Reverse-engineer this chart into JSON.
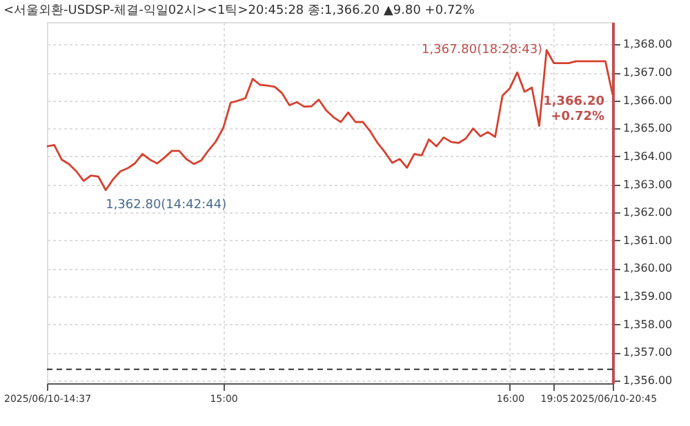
{
  "chart_data": {
    "type": "line",
    "title": "<서울외환-USDSP-체결-익일02시><1틱>20:45:28 종:1,366.20 ▲9.80 +0.72%",
    "categories": [
      "2025/06/10-14:37",
      null,
      null,
      null,
      null,
      null,
      null,
      null,
      null,
      null,
      null,
      null,
      null,
      null,
      null,
      null,
      null,
      null,
      null,
      null,
      null,
      null,
      null,
      null,
      "15:00",
      null,
      null,
      null,
      null,
      null,
      null,
      null,
      null,
      null,
      null,
      null,
      null,
      null,
      null,
      null,
      null,
      null,
      null,
      null,
      null,
      null,
      null,
      null,
      null,
      null,
      null,
      null,
      null,
      null,
      null,
      null,
      null,
      null,
      null,
      null,
      null,
      null,
      null,
      "16:00",
      null,
      null,
      null,
      null,
      null,
      "19:05",
      null,
      null,
      null,
      null,
      null,
      null,
      null,
      "2025/06/10-20:45"
    ],
    "series": [
      {
        "color": "#d7402f",
        "values": [
          1364.36,
          1364.41,
          1363.89,
          1363.73,
          1363.47,
          1363.13,
          1363.32,
          1363.28,
          1362.8,
          1363.18,
          1363.47,
          1363.58,
          1363.76,
          1364.09,
          1363.89,
          1363.75,
          1363.96,
          1364.2,
          1364.2,
          1363.9,
          1363.73,
          1363.86,
          1364.22,
          1364.54,
          1365.02,
          1365.92,
          1365.99,
          1366.08,
          1366.77,
          1366.56,
          1366.53,
          1366.49,
          1366.26,
          1365.83,
          1365.94,
          1365.78,
          1365.79,
          1366.03,
          1365.65,
          1365.4,
          1365.23,
          1365.57,
          1365.23,
          1365.23,
          1364.9,
          1364.48,
          1364.15,
          1363.77,
          1363.91,
          1363.6,
          1364.09,
          1364.04,
          1364.61,
          1364.36,
          1364.68,
          1364.52,
          1364.48,
          1364.64,
          1365.0,
          1364.72,
          1364.87,
          1364.7,
          1366.17,
          1366.44,
          1367.0,
          1366.31,
          1366.46,
          1365.09,
          1367.8,
          1367.33,
          1367.33,
          1367.33,
          1367.4,
          1367.4,
          1367.4,
          1367.4,
          1367.4,
          1366.2
        ]
      }
    ],
    "ylim": [
      1355.9,
      1368.8
    ],
    "yticks": [
      {
        "value": 1356,
        "label": "1,356.00"
      },
      {
        "value": 1357,
        "label": "1,357.00"
      },
      {
        "value": 1358,
        "label": "1,358.00"
      },
      {
        "value": 1359,
        "label": "1,359.00"
      },
      {
        "value": 1360,
        "label": "1,360.00"
      },
      {
        "value": 1361,
        "label": "1,361.00"
      },
      {
        "value": 1362,
        "label": "1,362.00"
      },
      {
        "value": 1363,
        "label": "1,363.00"
      },
      {
        "value": 1364,
        "label": "1,364.00"
      },
      {
        "value": 1365,
        "label": "1,365.00"
      },
      {
        "value": 1366,
        "label": "1,366.00"
      },
      {
        "value": 1367,
        "label": "1,367.00"
      },
      {
        "value": 1368,
        "label": "1,368.00"
      }
    ],
    "ref_lines": [
      {
        "axis": "y",
        "value": 1356.4,
        "color": "#333333",
        "line_style": "dashed"
      }
    ],
    "annotations": [
      "1,367.80(18:28:43)",
      "1,362.80(14:42:44)",
      "1,366.20 +0.72%"
    ],
    "grid": true,
    "line_style": "solid",
    "marker": "none"
  }
}
